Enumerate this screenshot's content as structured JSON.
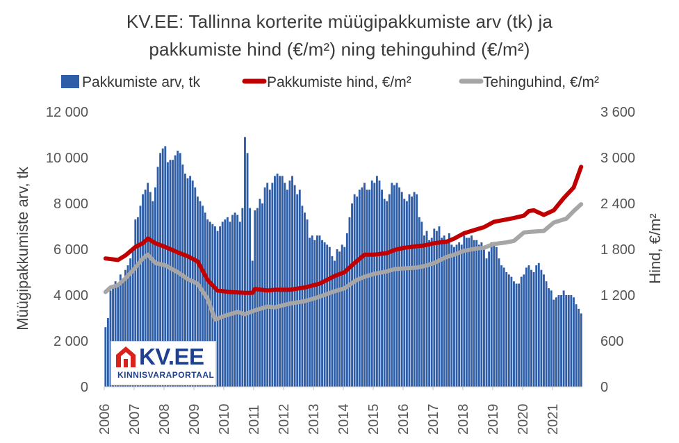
{
  "title_line1": "KV.EE: Tallinna korterite müügipakkumiste arv (tk) ja",
  "title_line2": "pakkumiste hind (€/m²) ning tehinguhind (€/m²)",
  "logo": {
    "text": "KV.EE",
    "subtext": "KINNISVARAPORTAAL"
  },
  "colors": {
    "bars": "#2e5ea8",
    "offer_price": "#c00000",
    "deal_price": "#a6a6a6"
  },
  "chart_data": {
    "type": "bar+line",
    "title": "KV.EE: Tallinna korterite müügipakkumiste arv (tk) ja pakkumiste hind (€/m²) ning tehinguhind (€/m²)",
    "ylabel_left": "Müügipakkumiste arv, tk",
    "ylabel_right": "Hind, €/m²",
    "ylim_left": [
      0,
      12000
    ],
    "ylim_right": [
      0,
      3600
    ],
    "yticks_left": [
      "0",
      "2 000",
      "4 000",
      "6 000",
      "8 000",
      "10 000",
      "12 000"
    ],
    "yticks_right": [
      "0",
      "600",
      "1 200",
      "1 800",
      "2 400",
      "3 000",
      "3 600"
    ],
    "xticks": [
      "2006",
      "2007",
      "2008",
      "2009",
      "2010",
      "2011",
      "2012",
      "2013",
      "2014",
      "2015",
      "2016",
      "2017",
      "2018",
      "2019",
      "2020",
      "2021"
    ],
    "legend_position": "top",
    "grid": false,
    "series": [
      {
        "name": "Pakkumiste arv, tk",
        "kind": "bar",
        "axis": "left",
        "start": "2006-01",
        "values": [
          2600,
          3000,
          4200,
          4400,
          4600,
          4500,
          4900,
          4700,
          5100,
          5300,
          5600,
          6000,
          7300,
          7400,
          7900,
          8400,
          8600,
          8900,
          8500,
          8100,
          8700,
          9600,
          10200,
          10400,
          10500,
          9800,
          9900,
          9900,
          10100,
          10300,
          10200,
          9700,
          9300,
          9100,
          9200,
          9000,
          8700,
          8300,
          8100,
          7900,
          7600,
          7300,
          7200,
          7100,
          7000,
          6800,
          7000,
          7200,
          7300,
          7400,
          7200,
          7500,
          7600,
          7500,
          7200,
          7800,
          10900,
          10200,
          7800,
          5500,
          7700,
          7800,
          8200,
          8000,
          8700,
          8900,
          8600,
          8900,
          9200,
          9300,
          9200,
          9200,
          8900,
          8600,
          9000,
          9200,
          8800,
          8400,
          8600,
          7900,
          7600,
          7300,
          6500,
          6600,
          6400,
          6600,
          6600,
          6400,
          6300,
          6200,
          6100,
          5700,
          5500,
          6000,
          5900,
          6200,
          6100,
          6700,
          7400,
          8000,
          8400,
          8300,
          8600,
          8700,
          8900,
          8600,
          8600,
          9000,
          8900,
          9200,
          9000,
          8600,
          8200,
          8100,
          8400,
          8900,
          8800,
          8900,
          8700,
          8500,
          8200,
          8100,
          8400,
          8300,
          8500,
          8400,
          7400,
          7200,
          6600,
          6800,
          6400,
          6500,
          6900,
          6800,
          7000,
          6500,
          6600,
          6400,
          6700,
          6200,
          6100,
          6200,
          6300,
          6200,
          6600,
          6500,
          6500,
          6600,
          6400,
          6400,
          6200,
          6300,
          6100,
          5600,
          5900,
          6300,
          6200,
          6100,
          5600,
          5300,
          5200,
          5000,
          4900,
          4800,
          4600,
          4500,
          4500,
          4800,
          4900,
          5200,
          5300,
          5100,
          5000,
          5300,
          5400,
          5100,
          4900,
          4600,
          4300,
          4200,
          3800,
          3900,
          4000,
          4000,
          4200,
          4000,
          4000,
          4000,
          3900,
          3600,
          3400,
          3200
        ],
        "note": "monthly, Jan 2006 – Dec 2021"
      },
      {
        "name": "Pakkumiste hind, €/m²",
        "kind": "line",
        "axis": "right",
        "x": [
          "2006-01",
          "2006-06",
          "2006-09",
          "2007-01",
          "2007-04",
          "2007-06",
          "2007-09",
          "2008-01",
          "2008-06",
          "2008-10",
          "2009-02",
          "2009-06",
          "2009-10",
          "2010-03",
          "2010-09",
          "2010-12",
          "2011-01",
          "2011-06",
          "2011-09",
          "2012-03",
          "2012-09",
          "2013-03",
          "2013-09",
          "2014-01",
          "2014-05",
          "2014-09",
          "2015-01",
          "2015-06",
          "2015-09",
          "2016-01",
          "2016-06",
          "2016-09",
          "2017-01",
          "2017-06",
          "2017-09",
          "2018-01",
          "2018-06",
          "2018-09",
          "2019-01",
          "2019-06",
          "2019-09",
          "2020-01",
          "2020-03",
          "2020-05",
          "2020-09",
          "2021-01",
          "2021-05",
          "2021-09",
          "2021-12"
        ],
        "values": [
          1680,
          1660,
          1720,
          1830,
          1880,
          1940,
          1880,
          1830,
          1760,
          1710,
          1640,
          1400,
          1260,
          1240,
          1230,
          1230,
          1280,
          1260,
          1270,
          1270,
          1300,
          1350,
          1450,
          1500,
          1620,
          1730,
          1730,
          1750,
          1790,
          1820,
          1840,
          1850,
          1880,
          1900,
          1940,
          2010,
          2060,
          2090,
          2160,
          2190,
          2210,
          2240,
          2300,
          2310,
          2250,
          2310,
          2470,
          2610,
          2880
        ]
      },
      {
        "name": "Tehinguhind, €/m²",
        "kind": "line",
        "axis": "right",
        "x": [
          "2006-01",
          "2006-03",
          "2006-06",
          "2006-09",
          "2007-01",
          "2007-04",
          "2007-06",
          "2007-09",
          "2008-01",
          "2008-06",
          "2008-10",
          "2009-02",
          "2009-06",
          "2009-09",
          "2010-01",
          "2010-06",
          "2010-09",
          "2011-01",
          "2011-06",
          "2011-09",
          "2012-03",
          "2012-09",
          "2013-03",
          "2013-09",
          "2014-01",
          "2014-06",
          "2014-09",
          "2015-01",
          "2015-06",
          "2015-09",
          "2016-01",
          "2016-06",
          "2016-09",
          "2017-01",
          "2017-06",
          "2017-09",
          "2018-01",
          "2018-06",
          "2018-09",
          "2019-01",
          "2019-06",
          "2019-09",
          "2020-01",
          "2020-04",
          "2020-09",
          "2021-01",
          "2021-06",
          "2021-09",
          "2021-12"
        ],
        "values": [
          1240,
          1300,
          1330,
          1420,
          1560,
          1680,
          1730,
          1620,
          1590,
          1500,
          1410,
          1350,
          1150,
          880,
          930,
          980,
          950,
          1000,
          1050,
          1040,
          1090,
          1120,
          1180,
          1250,
          1290,
          1400,
          1440,
          1480,
          1510,
          1540,
          1550,
          1560,
          1580,
          1620,
          1700,
          1730,
          1780,
          1810,
          1820,
          1870,
          1890,
          1910,
          2020,
          2030,
          2040,
          2150,
          2200,
          2300,
          2390
        ]
      }
    ]
  }
}
